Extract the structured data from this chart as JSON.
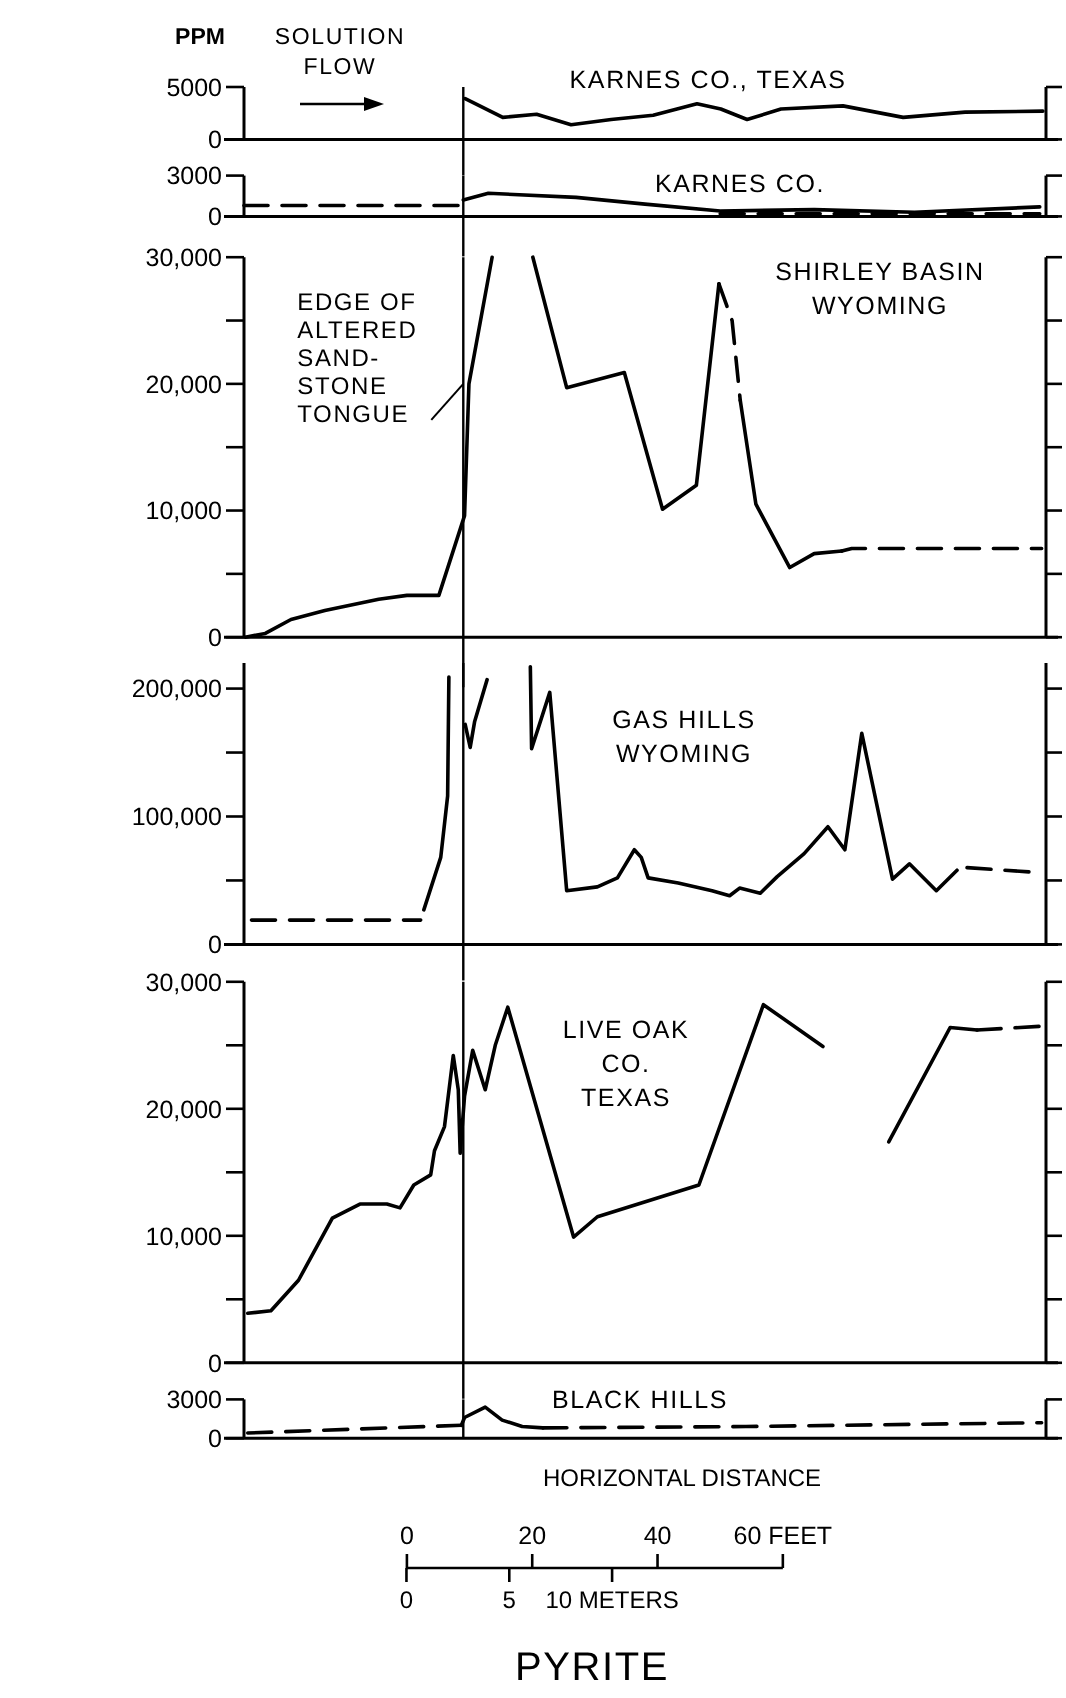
{
  "chart_data": [
    {
      "type": "line",
      "title": "KARNES CO., TEXAS",
      "ylabel": "PPM",
      "annotations": [
        "SOLUTION\nFLOW"
      ],
      "xlim": [
        -26,
        102
      ],
      "ylim": [
        0,
        5000
      ],
      "yticks": [
        0,
        5000
      ],
      "tick_labels": "y",
      "ref_lines": [
        {
          "axis": "x",
          "value": 9
        }
      ],
      "series": [
        {
          "color": "#000000",
          "line_style": "solid",
          "x": [
            9.3,
            15.3,
            20.7,
            26.2,
            32.6,
            39.3,
            46.3,
            50.1,
            54.3,
            59.7,
            69.6,
            79.2,
            89.1,
            101.5
          ],
          "values": [
            3900,
            2100,
            2400,
            1400,
            1900,
            2300,
            3400,
            2900,
            1900,
            2900,
            3200,
            2100,
            2600,
            2700
          ]
        }
      ]
    },
    {
      "type": "line",
      "title": "KARNES CO.",
      "xlim": [
        -26,
        102
      ],
      "ylim": [
        0,
        3000
      ],
      "yticks": [
        0,
        3000
      ],
      "tick_labels": "y",
      "ref_lines": [
        {
          "axis": "x",
          "value": 9
        }
      ],
      "series": [
        {
          "color": "#000000",
          "line_style": "dashed",
          "x": [
            -26,
            9
          ],
          "values": [
            800,
            800
          ]
        },
        {
          "color": "#000000",
          "line_style": "solid",
          "x": [
            9,
            13,
            27,
            38,
            50,
            65,
            81,
            101
          ],
          "values": [
            1200,
            1700,
            1400,
            900,
            400,
            500,
            300,
            700
          ]
        },
        {
          "color": "#000000",
          "line_style": "dashed",
          "x": [
            50,
            101
          ],
          "values": [
            200,
            200
          ]
        }
      ]
    },
    {
      "type": "line",
      "title": "SHIRLEY BASIN\nWYOMING",
      "annotations": [
        {
          "text": "EDGE OF\nALTERED\nSAND-\nSTONE\nTONGUE",
          "x": 9,
          "y": 20000
        }
      ],
      "xlim": [
        -26,
        102
      ],
      "ylim": [
        0,
        30000
      ],
      "yticks": [
        0,
        {
          "value": 5000,
          "label": null
        },
        {
          "value": 10000,
          "label": "10,000"
        },
        {
          "value": 15000,
          "label": null
        },
        {
          "value": 20000,
          "label": "20,000"
        },
        {
          "value": 25000,
          "label": null
        },
        {
          "value": 30000,
          "label": "30,000"
        }
      ],
      "tick_labels": "y",
      "ref_lines": [
        {
          "axis": "x",
          "value": 9
        }
      ],
      "series": [
        {
          "color": "#000000",
          "line_style": "solid",
          "x": [
            -25.8,
            -22.6,
            -18.5,
            -13.1,
            -4.5,
            0,
            5.1,
            9.2,
            9.9,
            13.6,
            16.8,
            20.1,
            25.5,
            34.7,
            40.8,
            46.2,
            49.8
          ],
          "values": [
            0,
            300,
            1400,
            2100,
            3000,
            3300,
            3300,
            9600,
            20000,
            30000,
            null,
            30000,
            19700,
            20900,
            10100,
            12000,
            27900
          ]
        },
        {
          "color": "#000000",
          "line_style": "dashed",
          "x": [
            49.8,
            51.9,
            53.2
          ],
          "values": [
            27900,
            25000,
            18700
          ]
        },
        {
          "color": "#000000",
          "line_style": "solid",
          "x": [
            53.2,
            55.7,
            61.1,
            65,
            69.4
          ],
          "values": [
            18700,
            10500,
            5500,
            6600,
            6800
          ]
        },
        {
          "color": "#000000",
          "line_style": "dashed",
          "x": [
            69.4,
            71,
            101.3
          ],
          "values": [
            6800,
            7000,
            7000
          ]
        }
      ]
    },
    {
      "type": "line",
      "title": "GAS HILLS\nWYOMING",
      "xlim": [
        -26,
        102
      ],
      "ylim": [
        0,
        220000
      ],
      "yticks": [
        0,
        {
          "value": 50000,
          "label": null
        },
        {
          "value": 100000,
          "label": "100,000"
        },
        {
          "value": 150000,
          "label": null
        },
        {
          "value": 200000,
          "label": "200,000"
        }
      ],
      "tick_labels": "y",
      "ref_lines": [
        {
          "axis": "x",
          "value": 9
        }
      ],
      "series": [
        {
          "color": "#000000",
          "line_style": "dashed",
          "x": [
            -24.8,
            2.2
          ],
          "values": [
            19000,
            19000
          ]
        },
        {
          "color": "#000000",
          "line_style": "solid",
          "x": [
            2.7,
            5.4,
            6.5,
            6.7,
            8,
            9.3,
            10.1,
            10.8,
            12.8,
            16,
            19.7,
            19.9,
            22.8,
            25.5,
            30.4,
            33.6,
            36.3,
            37.4,
            38.5,
            43.3,
            48.7,
            51.5,
            53.1,
            56.4,
            59.1,
            63.4,
            67.2,
            69.9,
            72.6,
            77.5,
            80.2,
            84.5,
            87.8
          ],
          "values": [
            27000,
            68000,
            116000,
            209000,
            null,
            172000,
            154000,
            174000,
            207000,
            null,
            217000,
            153000,
            197000,
            42000,
            45000,
            52000,
            74000,
            68000,
            52000,
            48000,
            42000,
            38000,
            44000,
            40000,
            53000,
            71000,
            92000,
            74000,
            165000,
            51000,
            63000,
            42000,
            58000
          ]
        },
        {
          "color": "#000000",
          "line_style": "dashed",
          "x": [
            89.4,
            101.3
          ],
          "values": [
            60000,
            56000
          ]
        }
      ]
    },
    {
      "type": "line",
      "title": "LIVE OAK\nCO.\nTEXAS",
      "xlim": [
        -26,
        102
      ],
      "ylim": [
        0,
        30000
      ],
      "yticks": [
        0,
        {
          "value": 5000,
          "label": null
        },
        {
          "value": 10000,
          "label": "10,000"
        },
        {
          "value": 15000,
          "label": null
        },
        {
          "value": 20000,
          "label": "20,000"
        },
        {
          "value": 25000,
          "label": null
        },
        {
          "value": 30000,
          "label": "30,000"
        }
      ],
      "tick_labels": "y",
      "ref_lines": [
        {
          "axis": "x",
          "value": 9
        }
      ],
      "series": [
        {
          "color": "#000000",
          "line_style": "solid",
          "x": [
            -25.4,
            -21.7,
            -17.3,
            -11.9,
            -7.5,
            -3.2,
            -1.1,
            1.1,
            3.8,
            4.4,
            6,
            7.4,
            8.2,
            8.5,
            9.2,
            10.5,
            12.5,
            14.1,
            16.1,
            26.6,
            30.4,
            46.6,
            56.9,
            66.4
          ],
          "values": [
            3900,
            4100,
            6500,
            11400,
            12500,
            12500,
            12200,
            14000,
            14800,
            16700,
            18600,
            24200,
            21500,
            16500,
            21000,
            24600,
            21500,
            25000,
            28000,
            9900,
            11500,
            14000,
            28200,
            24900
          ]
        },
        {
          "color": "#000000",
          "line_style": "solid",
          "x": [
            76.9,
            86.7,
            91
          ],
          "values": [
            17400,
            26400,
            26200
          ]
        },
        {
          "color": "#000000",
          "line_style": "dashed",
          "x": [
            91,
            101.3
          ],
          "values": [
            26200,
            26500
          ]
        }
      ]
    },
    {
      "type": "line",
      "title": "BLACK HILLS",
      "xlabel": "HORIZONTAL DISTANCE",
      "annotations": [
        "PYRITE"
      ],
      "xlim": [
        -26,
        102
      ],
      "xticks": [
        0,
        20,
        40,
        {
          "value": 60,
          "label": "60 FEET"
        }
      ],
      "x2lim": [
        -7.9,
        31.1
      ],
      "x2ticks": [
        0,
        5,
        {
          "value": 10,
          "label": "10 METERS"
        }
      ],
      "ylim": [
        0,
        3000
      ],
      "yticks": [
        0,
        3000
      ],
      "ref_lines": [
        {
          "axis": "x",
          "value": 9
        }
      ],
      "series": [
        {
          "color": "#000000",
          "line_style": "dashed",
          "x": [
            -25.4,
            8.7
          ],
          "values": [
            400,
            1000
          ]
        },
        {
          "color": "#000000",
          "line_style": "solid",
          "x": [
            8.7,
            9.2,
            12.5,
            15.2,
            18.4,
            21.7
          ],
          "values": [
            1000,
            1600,
            2400,
            1400,
            900,
            800
          ]
        },
        {
          "color": "#000000",
          "line_style": "dashed",
          "x": [
            21.7,
            54.1,
            101.3
          ],
          "values": [
            800,
            900,
            1200
          ]
        }
      ]
    }
  ]
}
